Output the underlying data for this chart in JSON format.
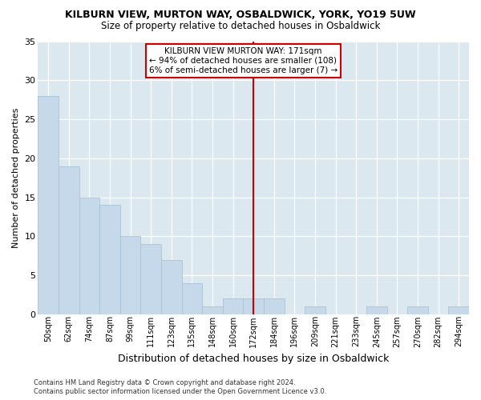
{
  "title": "KILBURN VIEW, MURTON WAY, OSBALDWICK, YORK, YO19 5UW",
  "subtitle": "Size of property relative to detached houses in Osbaldwick",
  "xlabel": "Distribution of detached houses by size in Osbaldwick",
  "ylabel": "Number of detached properties",
  "categories": [
    "50sqm",
    "62sqm",
    "74sqm",
    "87sqm",
    "99sqm",
    "111sqm",
    "123sqm",
    "135sqm",
    "148sqm",
    "160sqm",
    "172sqm",
    "184sqm",
    "196sqm",
    "209sqm",
    "221sqm",
    "233sqm",
    "245sqm",
    "257sqm",
    "270sqm",
    "282sqm",
    "294sqm"
  ],
  "values": [
    28,
    19,
    15,
    14,
    10,
    9,
    7,
    4,
    1,
    2,
    2,
    2,
    0,
    1,
    0,
    0,
    1,
    0,
    1,
    0,
    1
  ],
  "bar_color": "#c6d9ea",
  "bar_edge_color": "#a8c4d8",
  "red_line_index": 10,
  "annotation_title": "KILBURN VIEW MURTON WAY: 171sqm",
  "annotation_line1": "← 94% of detached houses are smaller (108)",
  "annotation_line2": "6% of semi-detached houses are larger (7) →",
  "annotation_box_color": "#ffffff",
  "annotation_box_edge": "#cc0000",
  "red_line_color": "#cc0000",
  "ylim": [
    0,
    35
  ],
  "yticks": [
    0,
    5,
    10,
    15,
    20,
    25,
    30,
    35
  ],
  "plot_bg_color": "#dce8f0",
  "fig_bg_color": "#ffffff",
  "footer_line1": "Contains HM Land Registry data © Crown copyright and database right 2024.",
  "footer_line2": "Contains public sector information licensed under the Open Government Licence v3.0."
}
